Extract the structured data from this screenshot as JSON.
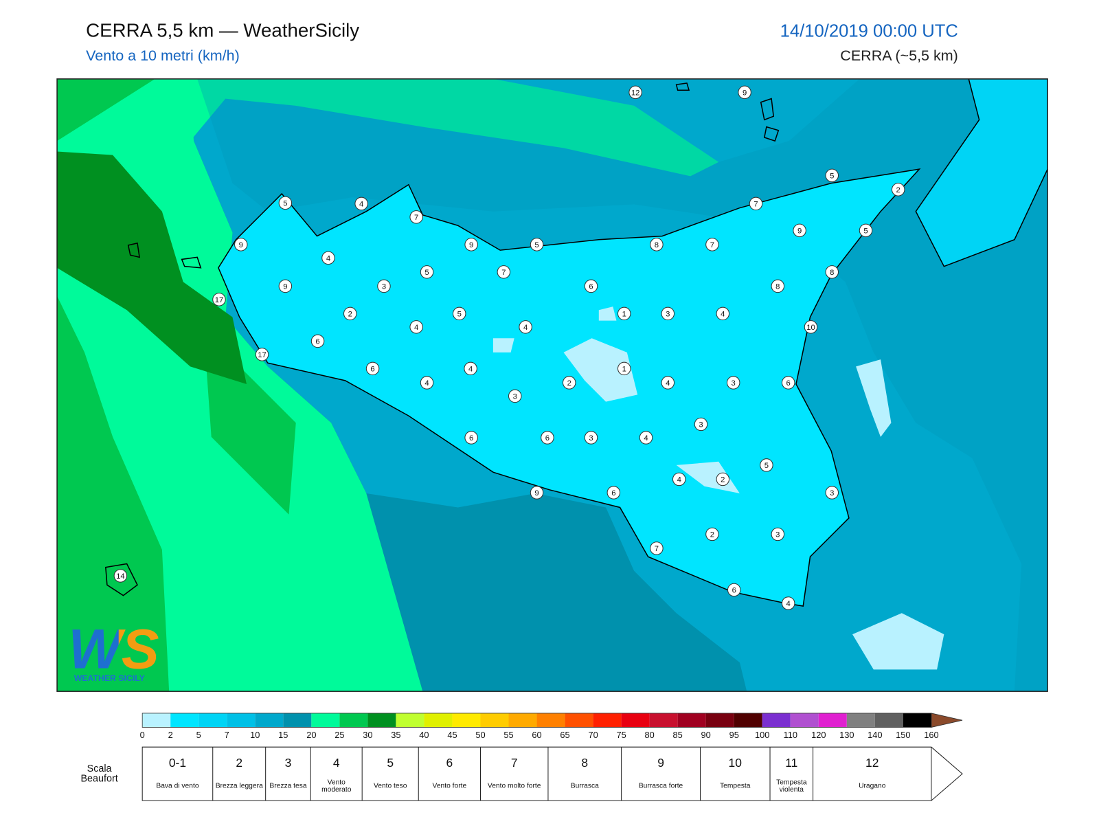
{
  "header": {
    "title": "CERRA 5,5 km — WeatherSicily",
    "subtitle": "Vento a 10 metri (km/h)",
    "datetime": "14/10/2019 00:00 UTC",
    "model": "CERRA (~5,5 km)"
  },
  "stations": [
    12,
    9,
    5,
    2,
    5,
    4,
    7,
    7,
    9,
    9,
    5,
    8,
    7,
    9,
    5,
    4,
    5,
    7,
    8,
    9,
    3,
    6,
    8,
    17,
    2,
    5,
    1,
    3,
    4,
    4,
    4,
    10,
    6,
    17,
    6,
    4,
    1,
    4,
    2,
    4,
    3,
    6,
    3,
    3,
    6,
    6,
    3,
    4,
    5,
    4,
    2,
    6,
    9,
    3,
    2,
    3,
    7,
    6,
    4,
    14
  ],
  "logo": {
    "mark": "WS",
    "name": "WEATHER SICILY"
  },
  "colorbar": {
    "ticks": [
      0,
      2,
      5,
      7,
      10,
      15,
      20,
      25,
      30,
      35,
      40,
      45,
      50,
      55,
      60,
      65,
      70,
      75,
      80,
      85,
      90,
      95,
      100,
      110,
      120,
      130,
      140,
      150,
      160
    ],
    "colors": [
      "#b9f2ff",
      "#00e5ff",
      "#00d4f5",
      "#00c0e6",
      "#00a8cc",
      "#0091ad",
      "#00fa9a",
      "#00c850",
      "#009020",
      "#c0ff30",
      "#e0f000",
      "#ffea00",
      "#ffcc00",
      "#ffaa00",
      "#ff8000",
      "#ff5000",
      "#ff2000",
      "#e80010",
      "#c8102e",
      "#a00020",
      "#780010",
      "#500000",
      "#7b2fd0",
      "#b050d0",
      "#e020d0",
      "#808080",
      "#606060",
      "#000000",
      "#8b4a2b",
      "#cd853f"
    ]
  },
  "beaufort": {
    "label": "Scala Beaufort",
    "levels": [
      {
        "force": "0-1",
        "desc": "Bava di vento"
      },
      {
        "force": "2",
        "desc": "Brezza leggera"
      },
      {
        "force": "3",
        "desc": "Brezza tesa"
      },
      {
        "force": "4",
        "desc": "Vento moderato"
      },
      {
        "force": "5",
        "desc": "Vento teso"
      },
      {
        "force": "6",
        "desc": "Vento forte"
      },
      {
        "force": "7",
        "desc": "Vento molto forte"
      },
      {
        "force": "8",
        "desc": "Burrasca"
      },
      {
        "force": "9",
        "desc": "Burrasca forte"
      },
      {
        "force": "10",
        "desc": "Tempesta"
      },
      {
        "force": "11",
        "desc": "Tempesta violenta"
      },
      {
        "force": "12",
        "desc": "Uragano"
      }
    ]
  }
}
